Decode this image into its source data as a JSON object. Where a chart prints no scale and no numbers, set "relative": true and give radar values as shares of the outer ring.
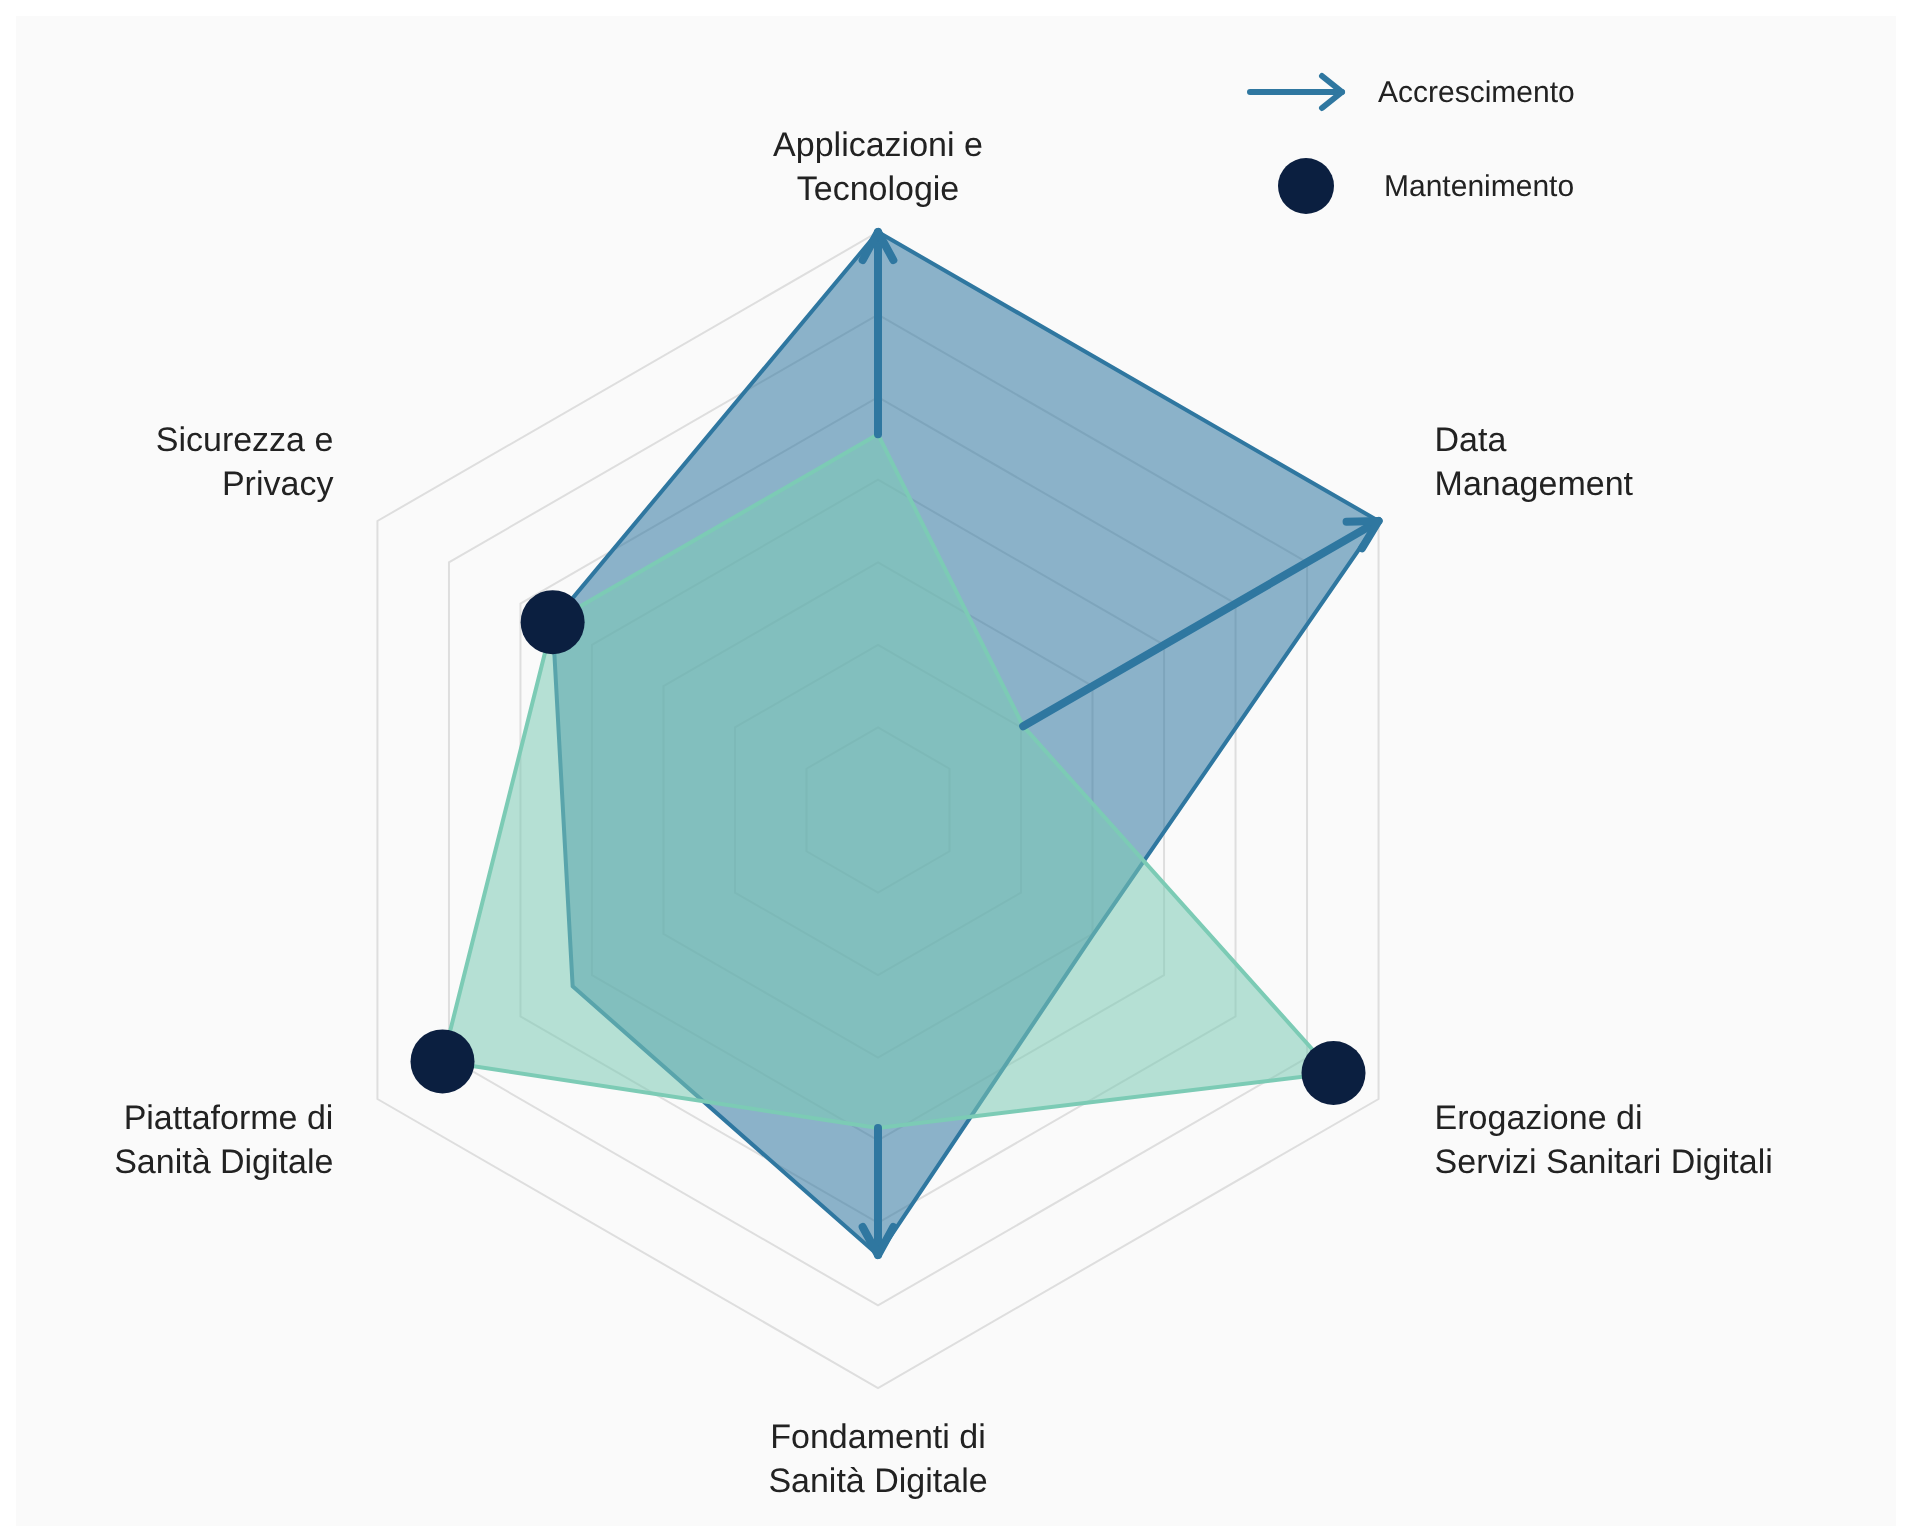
{
  "chart_data": {
    "type": "radar",
    "relative": true,
    "categories": [
      "Applicazioni e\nTecnologie",
      "Data\nManagement",
      "Erogazione di\nServizi Sanitari Digitali",
      "Fondamenti di\nSanità Digitale",
      "Piattaforme di\nSanità Digitale",
      "Sicurezza e\nPrivacy"
    ],
    "series": [
      {
        "color": "#2f77a0",
        "values": [
          1,
          1,
          0.43,
          0.77,
          0.61,
          0.65
        ]
      },
      {
        "color": "#7ccbb5",
        "values": [
          0.65,
          0.29,
          0.91,
          0.55,
          0.87,
          0.65
        ]
      }
    ],
    "annotations": [
      "Accrescimento",
      "Mantenimento"
    ]
  }
}
